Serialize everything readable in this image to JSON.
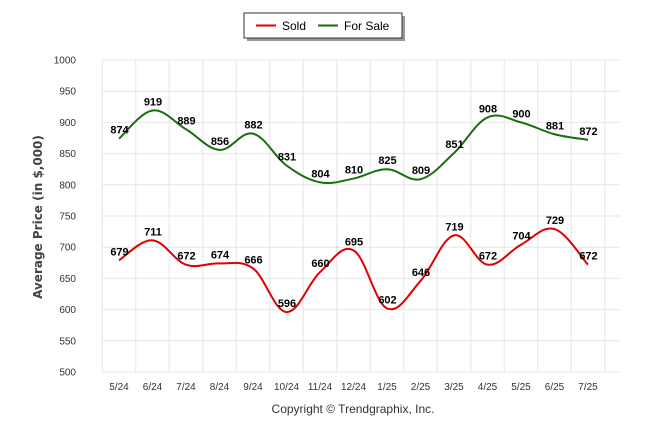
{
  "chart_data": {
    "type": "line",
    "ylabel": "Average Price (in $,000)",
    "xlabel": "",
    "ylim": [
      500,
      1000
    ],
    "yticks": [
      500,
      550,
      600,
      650,
      700,
      750,
      800,
      850,
      900,
      950,
      1000
    ],
    "categories": [
      "5/24",
      "6/24",
      "7/24",
      "8/24",
      "9/24",
      "10/24",
      "11/24",
      "12/24",
      "1/25",
      "2/25",
      "3/25",
      "4/25",
      "5/25",
      "6/25",
      "7/25"
    ],
    "grid": true,
    "legend_position": "top-center",
    "series": [
      {
        "name": "Sold",
        "color": "#e00000",
        "values": [
          679,
          711,
          672,
          674,
          666,
          596,
          660,
          695,
          602,
          646,
          719,
          672,
          704,
          729,
          672
        ]
      },
      {
        "name": "For Sale",
        "color": "#1a6e10",
        "values": [
          874,
          919,
          889,
          856,
          882,
          831,
          804,
          810,
          825,
          809,
          851,
          908,
          900,
          881,
          872
        ]
      }
    ]
  },
  "footer": {
    "copyright": "Copyright © Trendgraphix, Inc."
  }
}
